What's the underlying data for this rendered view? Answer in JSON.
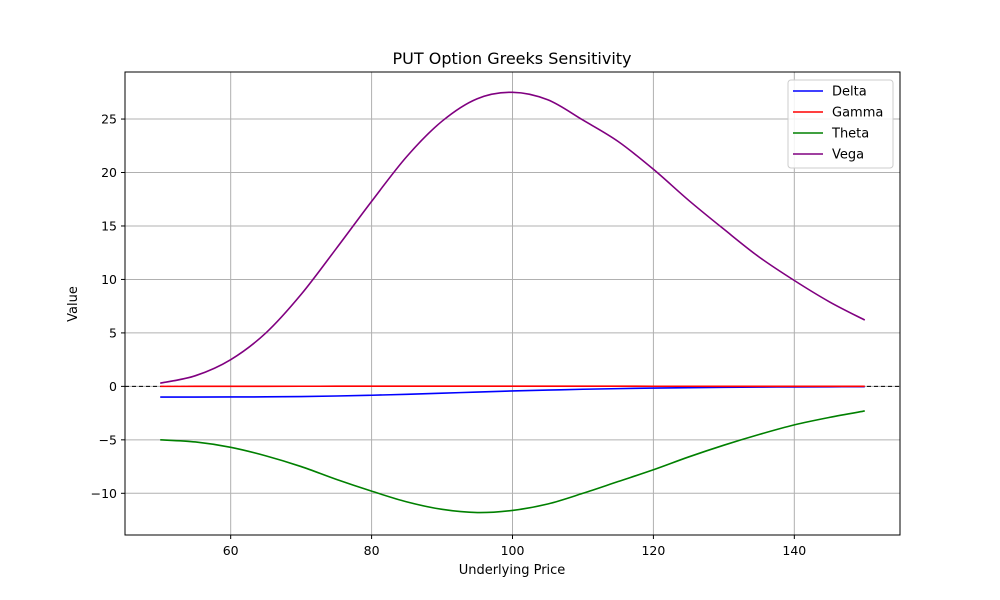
{
  "chart_data": {
    "type": "line",
    "title": "PUT Option Greeks Sensitivity",
    "xlabel": "Underlying Price",
    "ylabel": "Value",
    "xlim": [
      45,
      155
    ],
    "ylim": [
      -13.9,
      29.4
    ],
    "xticks": [
      60,
      80,
      100,
      120,
      140
    ],
    "yticks": [
      -10,
      -5,
      0,
      5,
      10,
      15,
      20,
      25
    ],
    "ytick_labels": [
      "−10",
      "−5",
      "0",
      "5",
      "10",
      "15",
      "20",
      "25"
    ],
    "grid": true,
    "legend_position": "top-right",
    "reference_line": {
      "y": 0,
      "style": "dashed",
      "color": "#000000"
    },
    "series": [
      {
        "name": "Delta",
        "color": "#0000ff",
        "x": [
          50,
          55,
          60,
          65,
          70,
          75,
          80,
          85,
          90,
          95,
          100,
          105,
          110,
          115,
          120,
          125,
          130,
          135,
          140,
          145,
          150
        ],
        "y": [
          -1.0,
          -1.0,
          -0.99,
          -0.98,
          -0.95,
          -0.9,
          -0.83,
          -0.74,
          -0.64,
          -0.53,
          -0.43,
          -0.35,
          -0.27,
          -0.21,
          -0.16,
          -0.12,
          -0.09,
          -0.07,
          -0.05,
          -0.04,
          -0.03
        ]
      },
      {
        "name": "Gamma",
        "color": "#ff0000",
        "x": [
          50,
          55,
          60,
          65,
          70,
          75,
          80,
          85,
          90,
          95,
          100,
          105,
          110,
          115,
          120,
          125,
          130,
          135,
          140,
          145,
          150
        ],
        "y": [
          0.0,
          0.001,
          0.003,
          0.006,
          0.01,
          0.014,
          0.017,
          0.019,
          0.02,
          0.02,
          0.019,
          0.018,
          0.016,
          0.014,
          0.012,
          0.01,
          0.008,
          0.007,
          0.006,
          0.005,
          0.004
        ]
      },
      {
        "name": "Theta",
        "color": "#008000",
        "x": [
          50,
          55,
          60,
          65,
          70,
          75,
          80,
          85,
          90,
          95,
          100,
          105,
          110,
          115,
          120,
          125,
          130,
          135,
          140,
          145,
          150
        ],
        "y": [
          -5.0,
          -5.2,
          -5.7,
          -6.5,
          -7.5,
          -8.7,
          -9.8,
          -10.8,
          -11.5,
          -11.8,
          -11.6,
          -11.0,
          -10.0,
          -8.9,
          -7.8,
          -6.6,
          -5.5,
          -4.5,
          -3.6,
          -2.9,
          -2.3
        ]
      },
      {
        "name": "Vega",
        "color": "#800080",
        "x": [
          50,
          55,
          60,
          65,
          70,
          75,
          80,
          85,
          90,
          95,
          100,
          105,
          110,
          115,
          120,
          125,
          130,
          135,
          140,
          145,
          150
        ],
        "y": [
          0.3,
          1.0,
          2.5,
          5.0,
          8.6,
          12.9,
          17.3,
          21.5,
          24.8,
          26.9,
          27.5,
          26.8,
          24.9,
          22.9,
          20.3,
          17.4,
          14.7,
          12.1,
          9.9,
          7.9,
          6.2
        ]
      }
    ]
  }
}
